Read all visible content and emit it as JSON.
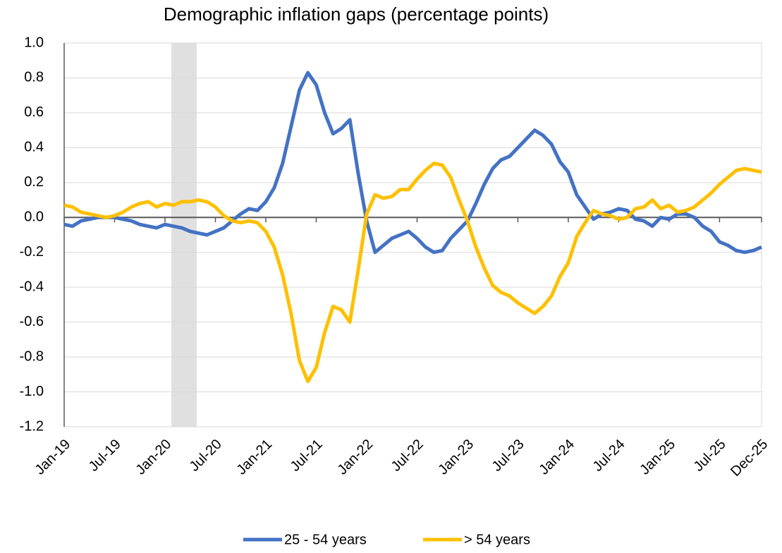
{
  "chart_data": {
    "type": "line",
    "title": "Demographic inflation gaps (percentage points)",
    "categories": [
      "Jan-19",
      null,
      null,
      null,
      null,
      null,
      "Jul-19",
      null,
      null,
      null,
      null,
      null,
      "Jan-20",
      null,
      null,
      null,
      null,
      null,
      "Jul-20",
      null,
      null,
      null,
      null,
      null,
      "Jan-21",
      null,
      null,
      null,
      null,
      null,
      "Jul-21",
      null,
      null,
      null,
      null,
      null,
      "Jan-22",
      null,
      null,
      null,
      null,
      null,
      "Jul-22",
      null,
      null,
      null,
      null,
      null,
      "Jan-23",
      null,
      null,
      null,
      null,
      null,
      "Jul-23",
      null,
      null,
      null,
      null,
      null,
      "Jan-24",
      null,
      null,
      null,
      null,
      null,
      "Jul-24",
      null,
      null,
      null,
      null,
      null,
      "Jan-25",
      null,
      null,
      null,
      null,
      null,
      "Jul-25",
      null,
      null,
      null,
      null,
      "Dec-25"
    ],
    "series": [
      {
        "name": "25 - 54 years",
        "color": "#4472c4",
        "values": [
          -0.04,
          -0.05,
          -0.02,
          -0.01,
          0.0,
          0.0,
          0.0,
          -0.01,
          -0.02,
          -0.04,
          -0.05,
          -0.06,
          -0.04,
          -0.05,
          -0.06,
          -0.08,
          -0.09,
          -0.1,
          -0.08,
          -0.06,
          -0.02,
          0.02,
          0.05,
          0.04,
          0.09,
          0.17,
          0.31,
          0.52,
          0.73,
          0.83,
          0.76,
          0.6,
          0.48,
          0.51,
          0.56,
          0.25,
          -0.02,
          -0.2,
          -0.16,
          -0.12,
          -0.1,
          -0.08,
          -0.12,
          -0.17,
          -0.2,
          -0.19,
          -0.12,
          -0.07,
          -0.02,
          0.08,
          0.19,
          0.28,
          0.33,
          0.35,
          0.4,
          0.45,
          0.5,
          0.47,
          0.42,
          0.32,
          0.26,
          0.13,
          0.06,
          -0.01,
          0.02,
          0.03,
          0.05,
          0.04,
          -0.01,
          -0.02,
          -0.05,
          0.0,
          -0.01,
          0.02,
          0.02,
          0.0,
          -0.05,
          -0.08,
          -0.14,
          -0.16,
          -0.19,
          -0.2,
          -0.19,
          -0.17
        ]
      },
      {
        "name": "> 54 years",
        "color": "#ffc000",
        "values": [
          0.07,
          0.06,
          0.03,
          0.02,
          0.01,
          0.0,
          0.01,
          0.03,
          0.06,
          0.08,
          0.09,
          0.06,
          0.08,
          0.07,
          0.09,
          0.09,
          0.1,
          0.09,
          0.06,
          0.01,
          -0.02,
          -0.03,
          -0.02,
          -0.03,
          -0.08,
          -0.17,
          -0.33,
          -0.55,
          -0.82,
          -0.94,
          -0.86,
          -0.66,
          -0.51,
          -0.53,
          -0.6,
          -0.3,
          0.02,
          0.13,
          0.11,
          0.12,
          0.16,
          0.16,
          0.22,
          0.27,
          0.31,
          0.3,
          0.23,
          0.1,
          -0.02,
          -0.17,
          -0.29,
          -0.39,
          -0.43,
          -0.45,
          -0.49,
          -0.52,
          -0.55,
          -0.51,
          -0.45,
          -0.34,
          -0.26,
          -0.11,
          -0.03,
          0.04,
          0.02,
          0.01,
          -0.01,
          0.0,
          0.05,
          0.06,
          0.1,
          0.05,
          0.07,
          0.03,
          0.04,
          0.06,
          0.1,
          0.14,
          0.19,
          0.23,
          0.27,
          0.28,
          0.27,
          0.26
        ]
      }
    ],
    "ylim": [
      -1.2,
      1.0
    ],
    "yticks": [
      {
        "value": 1,
        "label": "1.0"
      },
      0.8,
      0.6,
      0.4,
      0.2,
      {
        "value": 0,
        "label": "0.0"
      },
      -0.2,
      -0.4,
      -0.6,
      -0.8,
      {
        "value": -1,
        "label": "-1.0"
      },
      -1.2
    ],
    "grid": true,
    "legend": "bottom"
  }
}
